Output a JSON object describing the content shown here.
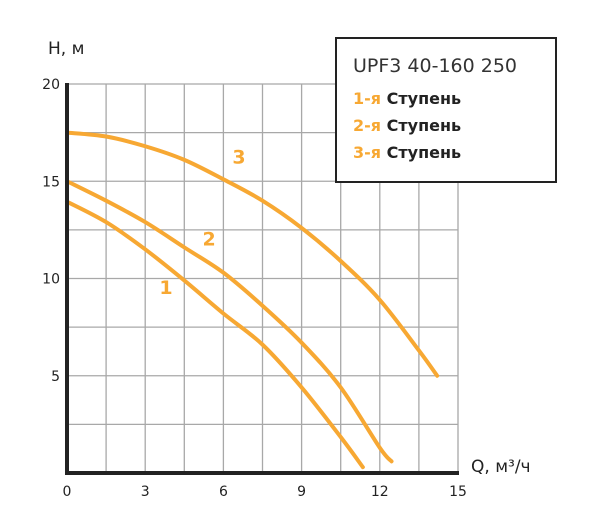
{
  "chart_data": {
    "type": "line",
    "xlabel": "Q, м³/ч",
    "ylabel": "H, м",
    "xlim": [
      0,
      15
    ],
    "ylim": [
      0,
      20
    ],
    "xticks": [
      "0",
      "3",
      "6",
      "9",
      "12",
      "15"
    ],
    "yticks": [
      "5",
      "10",
      "15",
      "20"
    ],
    "grid": true,
    "line_color": "#f7a833",
    "series": [
      {
        "name": "1",
        "x": [
          0,
          1.5,
          3,
          4.5,
          6,
          7.5,
          9,
          10.5,
          11.35
        ],
        "y": [
          13.95,
          12.9,
          11.5,
          9.9,
          8.2,
          6.6,
          4.4,
          1.85,
          0.3
        ]
      },
      {
        "name": "2",
        "x": [
          0,
          1.5,
          3,
          4.5,
          6,
          7.5,
          9,
          10.5,
          12,
          12.45
        ],
        "y": [
          15.0,
          14.0,
          12.9,
          11.6,
          10.3,
          8.6,
          6.7,
          4.4,
          1.3,
          0.6
        ]
      },
      {
        "name": "3",
        "x": [
          0,
          1.5,
          3,
          4.5,
          6,
          7.5,
          9,
          10.5,
          12,
          13.5,
          14.2
        ],
        "y": [
          17.5,
          17.3,
          16.8,
          16.1,
          15.1,
          14.0,
          12.6,
          10.9,
          8.9,
          6.3,
          5.0
        ]
      }
    ],
    "curve_labels": [
      {
        "text": "1",
        "x": 3.8,
        "y": 9.2
      },
      {
        "text": "2",
        "x": 5.45,
        "y": 11.7
      },
      {
        "text": "3",
        "x": 6.6,
        "y": 15.9
      }
    ]
  },
  "legend": {
    "title": "UPF3 40-160 250",
    "items": [
      {
        "num": "1-я",
        "label": "Ступень"
      },
      {
        "num": "2-я",
        "label": "Ступень"
      },
      {
        "num": "3-я",
        "label": "Ступень"
      }
    ]
  }
}
